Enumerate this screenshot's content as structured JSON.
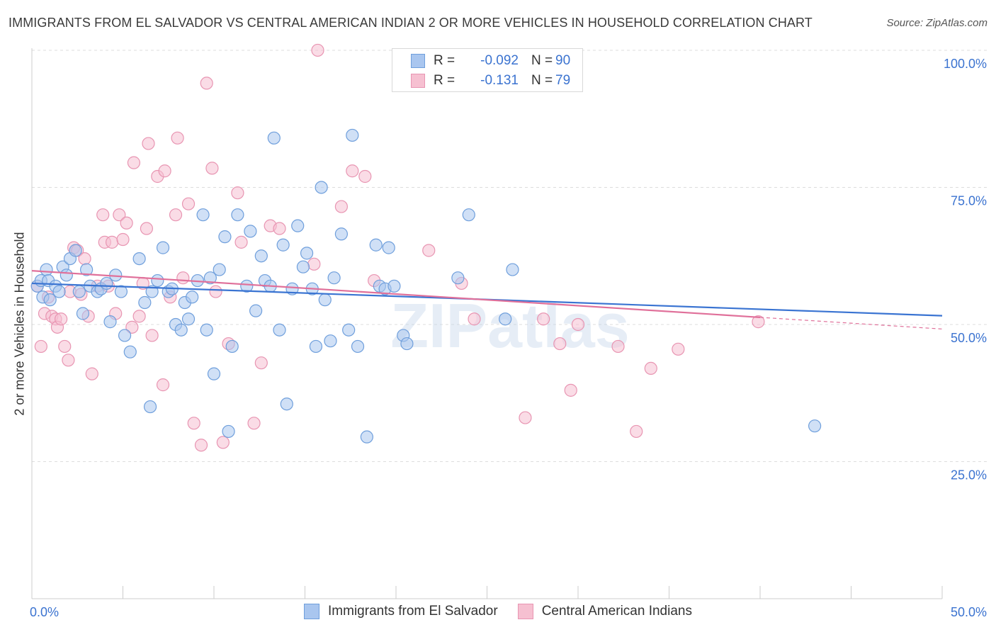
{
  "title": "IMMIGRANTS FROM EL SALVADOR VS CENTRAL AMERICAN INDIAN 2 OR MORE VEHICLES IN HOUSEHOLD CORRELATION CHART",
  "source": "Source: ZipAtlas.com",
  "watermark": "ZIPatlas",
  "legend": {
    "r_label": "R =",
    "n_label": "N =",
    "entries": [
      {
        "r": "-0.092",
        "n": "90"
      },
      {
        "r": "-0.131",
        "n": "79"
      }
    ]
  },
  "colors": {
    "blue_fill": "#a9c6ef",
    "blue_stroke": "#6f9fdc",
    "blue_line": "#3a74d2",
    "pink_fill": "#f6c0d1",
    "pink_stroke": "#e895b2",
    "pink_line": "#e0709a",
    "grid": "#dddddd",
    "tick_text": "#3b73d0"
  },
  "chart_data": {
    "type": "scatter",
    "title": "IMMIGRANTS FROM EL SALVADOR VS CENTRAL AMERICAN INDIAN 2 OR MORE VEHICLES IN HOUSEHOLD CORRELATION CHART",
    "xlabel": "",
    "ylabel": "2 or more Vehicles in Household",
    "xlim": [
      0,
      50
    ],
    "ylim": [
      0,
      104
    ],
    "x_tick_labels": [
      "0.0%",
      "50.0%"
    ],
    "y_ticks": [
      25,
      50,
      75,
      100
    ],
    "y_tick_labels": [
      "25.0%",
      "50.0%",
      "75.0%",
      "100.0%"
    ],
    "series": [
      {
        "name": "Immigrants from El Salvador",
        "color": "blue",
        "trend": {
          "x": [
            0,
            50
          ],
          "y": [
            57.5,
            51.6
          ]
        },
        "points": [
          [
            0.3,
            57
          ],
          [
            0.5,
            58
          ],
          [
            0.6,
            55
          ],
          [
            0.8,
            60
          ],
          [
            0.9,
            58
          ],
          [
            1.0,
            54.5
          ],
          [
            1.3,
            57
          ],
          [
            1.5,
            56
          ],
          [
            1.7,
            60.5
          ],
          [
            1.9,
            59
          ],
          [
            2.1,
            62
          ],
          [
            2.4,
            63.5
          ],
          [
            2.6,
            56
          ],
          [
            2.8,
            52
          ],
          [
            3.0,
            60
          ],
          [
            3.2,
            57
          ],
          [
            3.6,
            56
          ],
          [
            3.8,
            56.5
          ],
          [
            4.1,
            57.5
          ],
          [
            4.3,
            50.5
          ],
          [
            4.6,
            59
          ],
          [
            4.9,
            56
          ],
          [
            5.1,
            48
          ],
          [
            5.4,
            45
          ],
          [
            5.9,
            62
          ],
          [
            6.2,
            54
          ],
          [
            6.5,
            35
          ],
          [
            6.6,
            56
          ],
          [
            6.9,
            58
          ],
          [
            7.2,
            64
          ],
          [
            7.5,
            56
          ],
          [
            7.7,
            56.5
          ],
          [
            7.9,
            50
          ],
          [
            8.2,
            49
          ],
          [
            8.4,
            54
          ],
          [
            8.6,
            51
          ],
          [
            8.8,
            55
          ],
          [
            9.1,
            58
          ],
          [
            9.4,
            70
          ],
          [
            9.6,
            49
          ],
          [
            9.8,
            58.5
          ],
          [
            10.0,
            41
          ],
          [
            10.3,
            60
          ],
          [
            10.6,
            66
          ],
          [
            10.8,
            30.5
          ],
          [
            11.0,
            46
          ],
          [
            11.3,
            70
          ],
          [
            11.8,
            57
          ],
          [
            12.0,
            67
          ],
          [
            12.3,
            52.5
          ],
          [
            12.6,
            62.5
          ],
          [
            12.8,
            58
          ],
          [
            13.1,
            57
          ],
          [
            13.3,
            84
          ],
          [
            13.6,
            49
          ],
          [
            13.8,
            64.5
          ],
          [
            14.0,
            35.5
          ],
          [
            14.3,
            56.5
          ],
          [
            14.6,
            68
          ],
          [
            14.9,
            60.5
          ],
          [
            15.1,
            63
          ],
          [
            15.4,
            56.5
          ],
          [
            15.6,
            46
          ],
          [
            15.9,
            75
          ],
          [
            16.1,
            54.5
          ],
          [
            16.4,
            47
          ],
          [
            16.6,
            58.5
          ],
          [
            17.0,
            66.5
          ],
          [
            17.4,
            49
          ],
          [
            17.6,
            84.5
          ],
          [
            17.9,
            46
          ],
          [
            18.4,
            29.5
          ],
          [
            18.9,
            64.5
          ],
          [
            19.1,
            57
          ],
          [
            19.4,
            56.5
          ],
          [
            19.6,
            64
          ],
          [
            19.9,
            57
          ],
          [
            20.4,
            48
          ],
          [
            20.6,
            46.5
          ],
          [
            24.0,
            70
          ],
          [
            23.4,
            58.5
          ],
          [
            26.0,
            51
          ],
          [
            26.4,
            60
          ],
          [
            43.0,
            31.5
          ]
        ]
      },
      {
        "name": "Central American Indians",
        "color": "pink",
        "trend": {
          "x": [
            0,
            40
          ],
          "y": [
            59.8,
            51.3
          ]
        },
        "points": [
          [
            0.3,
            57
          ],
          [
            0.5,
            46
          ],
          [
            0.7,
            52
          ],
          [
            0.9,
            55
          ],
          [
            1.1,
            51.5
          ],
          [
            1.3,
            51
          ],
          [
            1.4,
            49.5
          ],
          [
            1.6,
            51
          ],
          [
            1.8,
            46
          ],
          [
            2.0,
            43.5
          ],
          [
            2.1,
            56
          ],
          [
            2.3,
            64
          ],
          [
            2.5,
            63.5
          ],
          [
            2.7,
            55.5
          ],
          [
            2.9,
            62
          ],
          [
            3.1,
            51.5
          ],
          [
            3.3,
            41
          ],
          [
            3.6,
            57
          ],
          [
            3.9,
            70
          ],
          [
            4.0,
            65
          ],
          [
            4.2,
            57
          ],
          [
            4.4,
            65
          ],
          [
            4.6,
            52
          ],
          [
            4.8,
            70
          ],
          [
            5.0,
            65.5
          ],
          [
            5.2,
            68.5
          ],
          [
            5.5,
            49.5
          ],
          [
            5.6,
            79.5
          ],
          [
            5.9,
            51.5
          ],
          [
            6.1,
            57.5
          ],
          [
            6.3,
            67.5
          ],
          [
            6.4,
            83
          ],
          [
            6.6,
            48
          ],
          [
            6.9,
            77
          ],
          [
            7.2,
            39
          ],
          [
            7.3,
            78
          ],
          [
            7.6,
            55
          ],
          [
            7.9,
            70
          ],
          [
            8.0,
            84
          ],
          [
            8.3,
            58.5
          ],
          [
            8.6,
            72
          ],
          [
            8.9,
            32
          ],
          [
            9.3,
            28
          ],
          [
            9.6,
            94
          ],
          [
            9.9,
            78.5
          ],
          [
            10.1,
            56
          ],
          [
            10.5,
            28.5
          ],
          [
            10.8,
            46.5
          ],
          [
            11.3,
            74
          ],
          [
            11.5,
            65
          ],
          [
            12.2,
            32
          ],
          [
            12.6,
            43
          ],
          [
            13.1,
            68
          ],
          [
            13.6,
            67.5
          ],
          [
            15.5,
            61
          ],
          [
            15.7,
            100
          ],
          [
            17.0,
            71.5
          ],
          [
            17.6,
            78
          ],
          [
            18.3,
            77
          ],
          [
            18.8,
            58
          ],
          [
            21.8,
            63.5
          ],
          [
            23.6,
            57.5
          ],
          [
            24.3,
            51
          ],
          [
            27.1,
            33
          ],
          [
            28.1,
            51
          ],
          [
            29.0,
            46.5
          ],
          [
            29.6,
            38
          ],
          [
            30.0,
            50
          ],
          [
            32.2,
            46
          ],
          [
            33.2,
            30.5
          ],
          [
            34.0,
            42
          ],
          [
            35.5,
            45.5
          ],
          [
            39.9,
            50.5
          ]
        ]
      }
    ]
  }
}
